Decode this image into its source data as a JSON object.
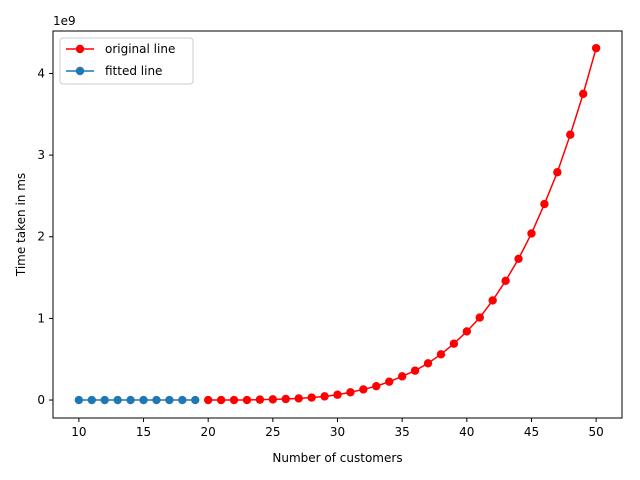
{
  "chart_data": {
    "type": "line",
    "title": "",
    "xlabel": "Number of customers",
    "ylabel": "Time taken in ms",
    "y_scale_multiplier_label": "1e9",
    "xlim": [
      8.0,
      52.0
    ],
    "ylim": [
      -0.22,
      4.52
    ],
    "x_ticks": [
      10,
      15,
      20,
      25,
      30,
      35,
      40,
      45,
      50
    ],
    "y_ticks": [
      0,
      1,
      2,
      3,
      4
    ],
    "grid": false,
    "legend_position": "upper-left",
    "series": [
      {
        "name": "original line",
        "color": "#ff0000",
        "marker": "circle",
        "x": [
          20,
          21,
          22,
          23,
          24,
          25,
          26,
          27,
          28,
          29,
          30,
          31,
          32,
          33,
          34,
          35,
          36,
          37,
          38,
          39,
          40,
          41,
          42,
          43,
          44,
          45,
          46,
          47,
          48,
          49,
          50
        ],
        "y": [
          0.0,
          0.0,
          0.0,
          0.0,
          0.005,
          0.008,
          0.013,
          0.02,
          0.03,
          0.045,
          0.065,
          0.095,
          0.13,
          0.17,
          0.225,
          0.29,
          0.36,
          0.45,
          0.56,
          0.69,
          0.84,
          1.01,
          1.22,
          1.46,
          1.73,
          2.04,
          2.4,
          2.79,
          3.25,
          3.75,
          4.31
        ]
      },
      {
        "name": "fitted line",
        "color": "#1f77b4",
        "marker": "circle",
        "x": [
          10,
          11,
          12,
          13,
          14,
          15,
          16,
          17,
          18,
          19
        ],
        "y": [
          0,
          0,
          0,
          0,
          0,
          0,
          0,
          0,
          0,
          0
        ]
      }
    ]
  }
}
